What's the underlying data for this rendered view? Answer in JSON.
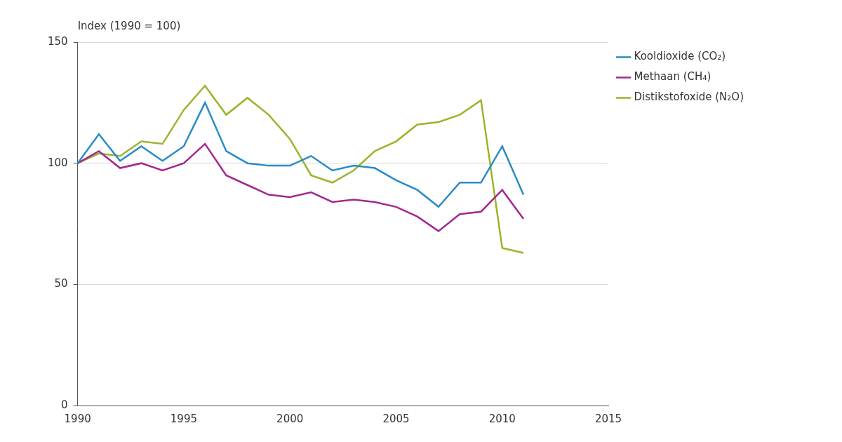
{
  "chart_data": {
    "type": "line",
    "y_label": "Index (1990 = 100)",
    "x": [
      1990,
      1991,
      1992,
      1993,
      1994,
      1995,
      1996,
      1997,
      1998,
      1999,
      2000,
      2001,
      2002,
      2003,
      2004,
      2005,
      2006,
      2007,
      2008,
      2009,
      2010,
      2011
    ],
    "series": [
      {
        "name": "Kooldioxide (CO₂)",
        "color": "#2a8bc4",
        "values": [
          100,
          112,
          101,
          107,
          101,
          107,
          125,
          105,
          100,
          99,
          99,
          103,
          97,
          99,
          98,
          93,
          89,
          82,
          92,
          92,
          107,
          87
        ]
      },
      {
        "name": "Methaan (CH₄)",
        "color": "#a3288f",
        "values": [
          100,
          105,
          98,
          100,
          97,
          100,
          108,
          95,
          91,
          87,
          86,
          88,
          84,
          85,
          84,
          82,
          78,
          72,
          79,
          80,
          89,
          77
        ]
      },
      {
        "name": "Distikstofoxide (N₂O)",
        "color": "#9ab52a",
        "values": [
          100,
          104,
          103,
          109,
          108,
          122,
          132,
          120,
          127,
          120,
          110,
          95,
          92,
          97,
          105,
          109,
          116,
          117,
          120,
          126,
          65,
          63
        ]
      }
    ],
    "xlim": [
      1990,
      2015
    ],
    "xticks": [
      1990,
      1995,
      2000,
      2005,
      2010,
      2015
    ],
    "ylim": [
      0,
      150
    ],
    "yticks": [
      0,
      50,
      100,
      150
    ],
    "grid": true,
    "legend": "right"
  }
}
